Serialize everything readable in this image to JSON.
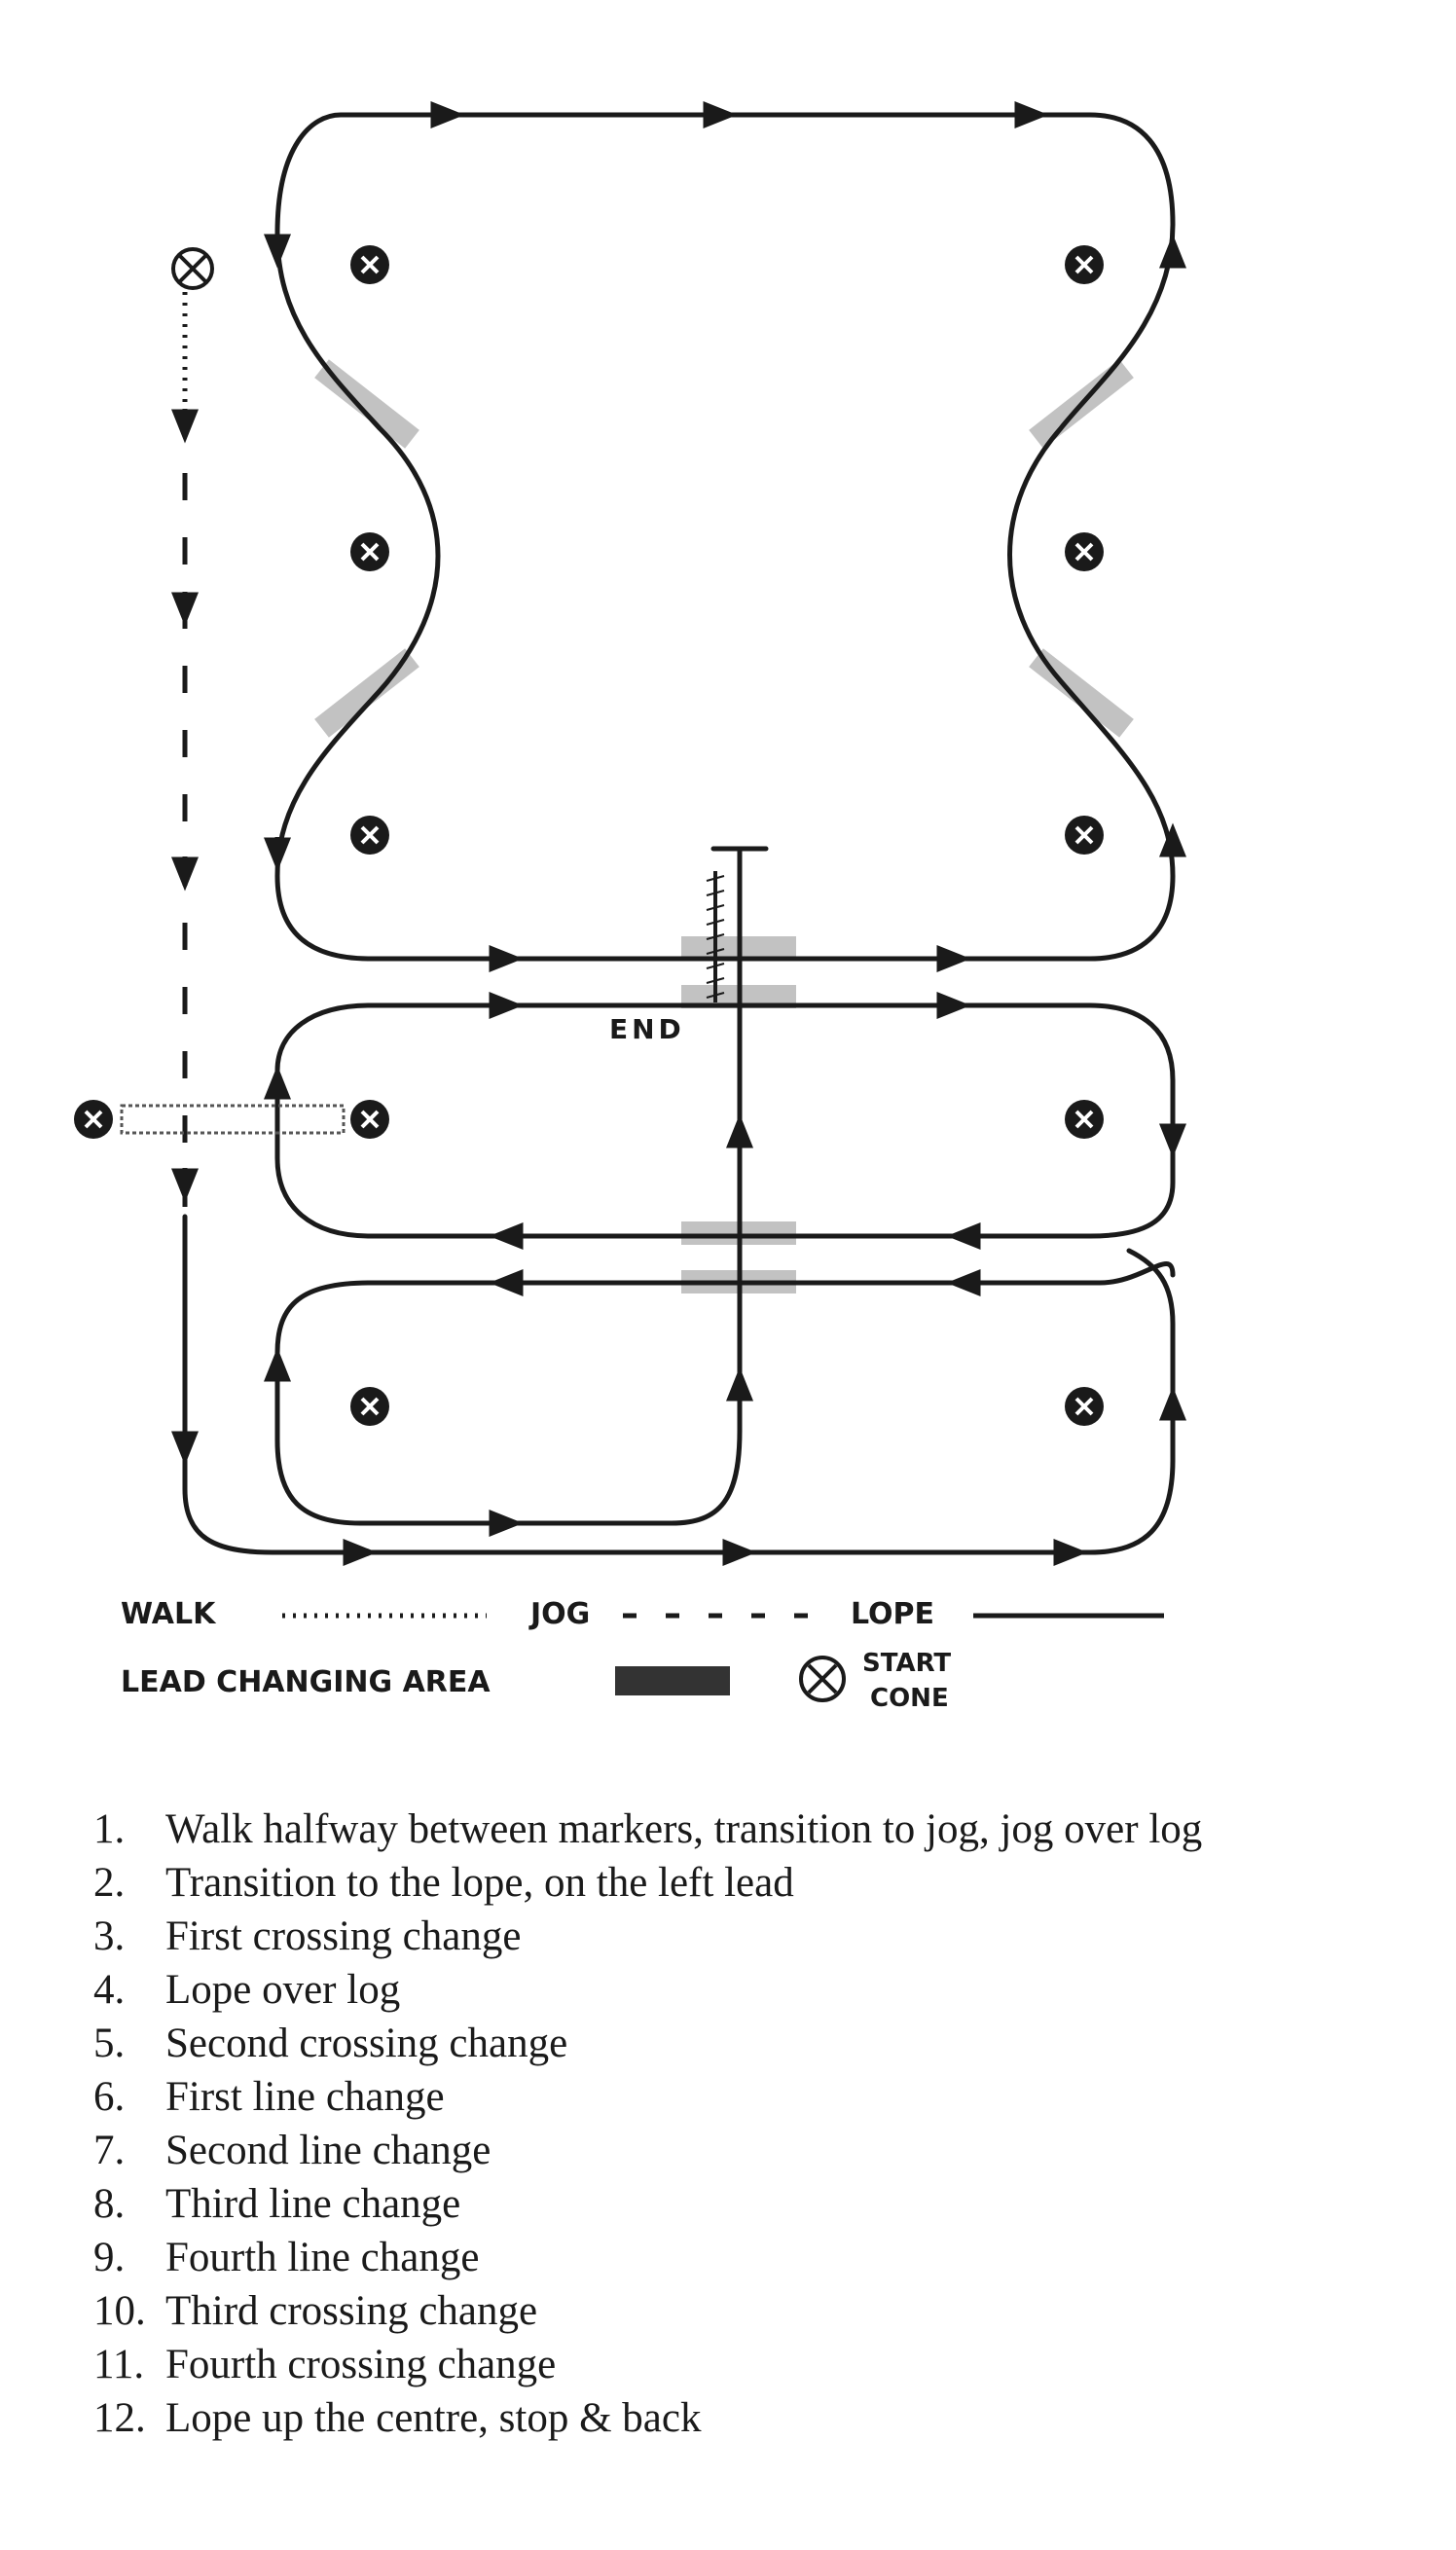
{
  "diagram": {
    "end_label": "END"
  },
  "legend": {
    "walk_label": "WALK",
    "jog_label": "JOG",
    "lope_label": "LOPE",
    "lead_change_label": "LEAD CHANGING AREA",
    "start_cone_label_line1": "START",
    "start_cone_label_line2": "CONE"
  },
  "steps": [
    {
      "num": "1.",
      "text": "Walk halfway between markers, transition to jog, jog over log"
    },
    {
      "num": "2.",
      "text": "Transition to the lope, on the left lead"
    },
    {
      "num": "3.",
      "text": "First crossing change"
    },
    {
      "num": "4.",
      "text": "Lope over log"
    },
    {
      "num": "5.",
      "text": "Second crossing change"
    },
    {
      "num": "6.",
      "text": "First line change"
    },
    {
      "num": "7.",
      "text": "Second line change"
    },
    {
      "num": "8.",
      "text": "Third line change"
    },
    {
      "num": "9.",
      "text": "Fourth line change"
    },
    {
      "num": "10.",
      "text": "Third crossing change"
    },
    {
      "num": "11.",
      "text": "Fourth crossing change"
    },
    {
      "num": "12.",
      "text": "Lope up the centre, stop & back"
    }
  ],
  "colors": {
    "line": "#1a1a1a",
    "lead_change_area": "#b8b8b8",
    "legend_bar": "#333333"
  }
}
